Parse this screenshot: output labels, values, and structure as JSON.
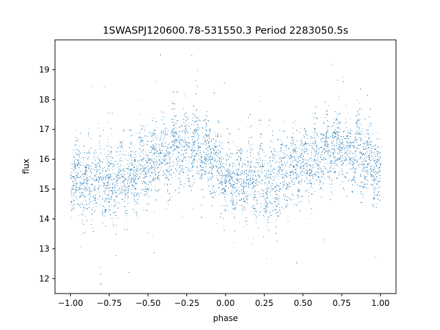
{
  "chart_data": {
    "type": "scatter",
    "title": "1SWASPJ120600.78-531550.3 Period 2283050.5s",
    "xlabel": "phase",
    "ylabel": "flux",
    "xlim": [
      -1.1,
      1.1
    ],
    "ylim": [
      11.5,
      20.0
    ],
    "xticks": [
      -1.0,
      -0.75,
      -0.5,
      -0.25,
      0.0,
      0.25,
      0.5,
      0.75,
      1.0
    ],
    "xtick_labels": [
      "−1.00",
      "−0.75",
      "−0.50",
      "−0.25",
      "0.00",
      "0.25",
      "0.50",
      "0.75",
      "1.00"
    ],
    "yticks": [
      12,
      13,
      14,
      15,
      16,
      17,
      18,
      19
    ],
    "ytick_labels": [
      "12",
      "13",
      "14",
      "15",
      "16",
      "17",
      "18",
      "19"
    ],
    "marker_color": "#1f77b4",
    "grid": false,
    "series_profile": {
      "phase": [
        -1.0,
        -0.9,
        -0.8,
        -0.7,
        -0.6,
        -0.5,
        -0.4,
        -0.3,
        -0.2,
        -0.1,
        0.0,
        0.1,
        0.2,
        0.3,
        0.4,
        0.5,
        0.6,
        0.7,
        0.8,
        0.9,
        1.0
      ],
      "flux_center": [
        15.4,
        15.2,
        15.3,
        15.3,
        15.6,
        15.9,
        16.1,
        16.4,
        16.3,
        16.1,
        15.4,
        15.2,
        15.3,
        15.3,
        15.6,
        15.9,
        16.1,
        16.4,
        16.3,
        16.1,
        15.4
      ],
      "flux_spread": [
        0.55,
        0.6,
        0.65,
        0.7,
        0.6,
        0.6,
        0.6,
        0.6,
        0.6,
        0.6,
        0.55,
        0.6,
        0.65,
        0.7,
        0.6,
        0.6,
        0.6,
        0.6,
        0.6,
        0.6,
        0.55
      ]
    },
    "point_count": 22000
  }
}
